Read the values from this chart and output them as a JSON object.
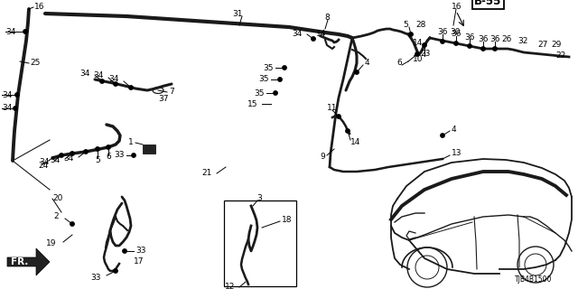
{
  "bg_color": "#ffffff",
  "line_color": "#1a1a1a",
  "part_code": "B-55",
  "diagram_code": "TJB4B1500",
  "figsize": [
    6.4,
    3.2
  ],
  "dpi": 100,
  "xlim": [
    0,
    640
  ],
  "ylim": [
    320,
    0
  ]
}
